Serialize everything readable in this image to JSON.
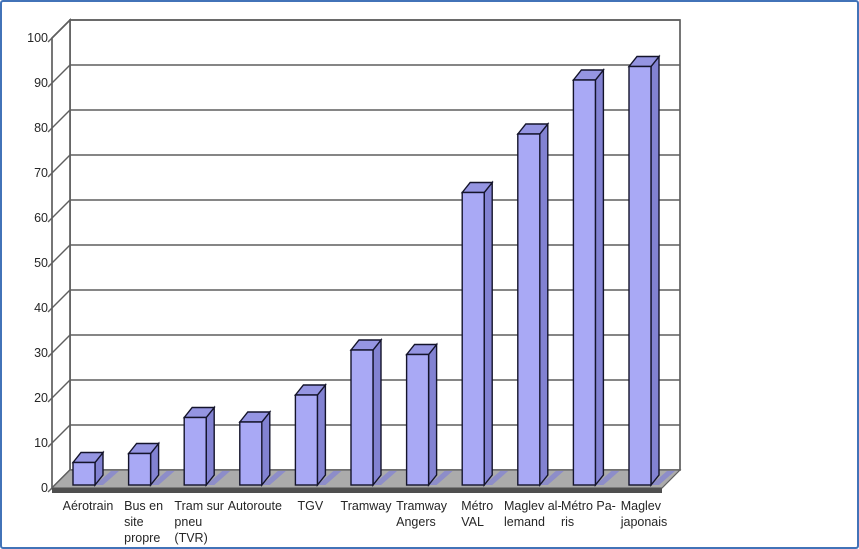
{
  "page": {
    "title": "Comparaison de modes de transport",
    "background": "#ffffff"
  },
  "colors": {
    "page_border": "#4273b8",
    "wall_fill": "#ffffff",
    "line": "#5f5f5f",
    "floor_top": "#ababab",
    "floor_front": "#4f4f4f",
    "bar_front": "#a9a9f5",
    "bar_top": "#9595e2",
    "bar_side": "#8282d2",
    "bar_shadow": "#8d8dc9",
    "bar_stroke": "#14142b",
    "text": "#262626"
  },
  "chart_data": {
    "type": "bar",
    "projection": "3d",
    "title": "",
    "xlabel": "",
    "ylabel": "",
    "ylim": [
      0,
      100
    ],
    "ytick_step": 10,
    "yticks": [
      0,
      10,
      20,
      30,
      40,
      50,
      60,
      70,
      80,
      90,
      100
    ],
    "grid": true,
    "legend": "none",
    "categories": [
      "Aérotrain",
      "Bus en site propre",
      "Tram sur pneu (TVR)",
      "Autoroute",
      "TGV",
      "Tramway",
      "Tramway Angers",
      "Métro VAL",
      "Maglev allemand",
      "Métro Paris",
      "Maglev japonais"
    ],
    "category_label_lines": [
      [
        "Aérotrain"
      ],
      [
        "Bus en",
        "site",
        "propre"
      ],
      [
        "Tram sur",
        "pneu",
        "(TVR)"
      ],
      [
        "Autoroute"
      ],
      [
        "TGV"
      ],
      [
        "Tramway"
      ],
      [
        "Tramway",
        "Angers"
      ],
      [
        "Métro",
        "VAL"
      ],
      [
        "Maglev al-",
        "lemand"
      ],
      [
        "Métro Pa-",
        "ris"
      ],
      [
        "Maglev",
        "japonais"
      ]
    ],
    "category_slugs": [
      "aerotrain",
      "bus-en-site-propre",
      "tram-sur-pneu-tvr",
      "autoroute",
      "tgv",
      "tramway",
      "tramway-angers",
      "metro-val",
      "maglev-allemand",
      "metro-paris",
      "maglev-japonais"
    ],
    "values": [
      5,
      7,
      15,
      14,
      20,
      30,
      29,
      65,
      78,
      90,
      93
    ]
  }
}
